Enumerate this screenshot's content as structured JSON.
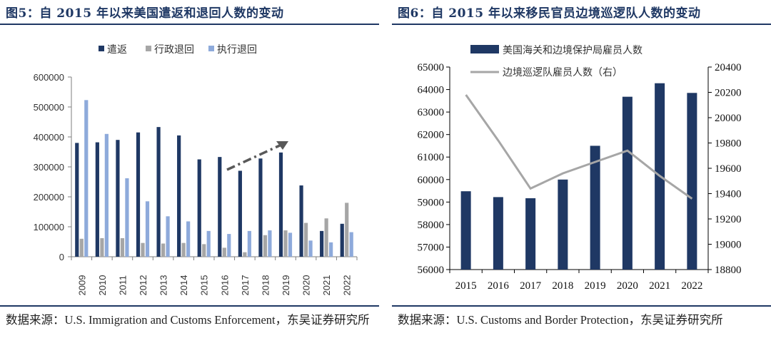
{
  "figures": [
    {
      "title": "图5：自 2015 年以来美国遣返和退回人数的变动",
      "source": "数据来源：U.S. Immigration and Customs Enforcement，东吴证券研究所"
    },
    {
      "title": "图6：自 2015 年以来移民官员边境巡逻队人数的变动",
      "source": "数据来源：U.S. Customs and Border Protection，东吴证券研究所"
    }
  ],
  "chart_data": [
    {
      "type": "bar",
      "title": "自 2015 年以来美国遣返和退回人数的变动",
      "categories": [
        "2009",
        "2010",
        "2011",
        "2012",
        "2013",
        "2014",
        "2015",
        "2016",
        "2017",
        "2018",
        "2019",
        "2020",
        "2021",
        "2022"
      ],
      "series": [
        {
          "name": "遣返",
          "color": "#1f3864",
          "values": [
            380000,
            382000,
            390000,
            415000,
            433000,
            405000,
            325000,
            333000,
            287000,
            328000,
            348000,
            238000,
            86000,
            110000
          ]
        },
        {
          "name": "行政退回",
          "color": "#a6a6a6",
          "values": [
            60000,
            62000,
            62000,
            46000,
            44000,
            46000,
            42000,
            30000,
            15000,
            72000,
            88000,
            113000,
            128000,
            180000
          ]
        },
        {
          "name": "执行退回",
          "color": "#8eaadb",
          "values": [
            523000,
            410000,
            262000,
            185000,
            135000,
            118000,
            86000,
            76000,
            86000,
            88000,
            80000,
            54000,
            48000,
            82000
          ]
        }
      ],
      "ylim": [
        0,
        600000
      ],
      "yticks": [
        0,
        100000,
        200000,
        300000,
        400000,
        500000,
        600000
      ],
      "legend": "top",
      "annotation": "dashed upward trend arrow from 2016 to 2019"
    },
    {
      "type": "bar+line",
      "title": "自 2015 年以来移民官员边境巡逻队人数的变动",
      "categories": [
        "2015",
        "2016",
        "2017",
        "2018",
        "2019",
        "2020",
        "2021",
        "2022"
      ],
      "series": [
        {
          "name": "美国海关和边境保护局雇员人数",
          "type": "bar",
          "axis": "left",
          "color": "#1f3864",
          "values": [
            59480,
            59220,
            59170,
            60000,
            61500,
            63680,
            64280,
            63850
          ]
        },
        {
          "name": "边境巡逻队雇员人数（右）",
          "type": "line",
          "axis": "right",
          "color": "#a6a6a6",
          "values": [
            20180,
            19820,
            19440,
            19560,
            19650,
            19740,
            19540,
            19360
          ]
        }
      ],
      "ylim_left": [
        56000,
        65000
      ],
      "yticks_left": [
        56000,
        57000,
        58000,
        59000,
        60000,
        61000,
        62000,
        63000,
        64000,
        65000
      ],
      "ylim_right": [
        18800,
        20400
      ],
      "yticks_right": [
        18800,
        19000,
        19200,
        19400,
        19600,
        19800,
        20000,
        20200,
        20400
      ],
      "legend": "top-left"
    }
  ]
}
